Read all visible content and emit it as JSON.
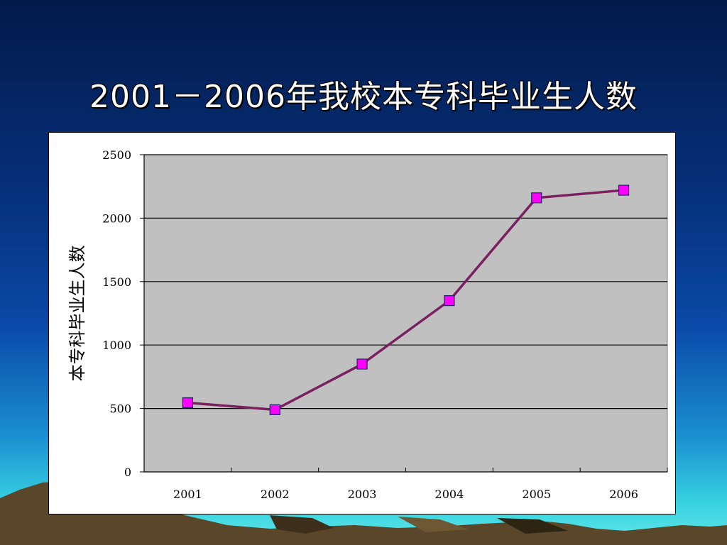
{
  "slide": {
    "title": "2001－2006年我校本专科毕业生人数"
  },
  "colors": {
    "line": "#7a2060",
    "marker_fill": "#ff00ff",
    "marker_stroke": "#202060",
    "plot_bg": "#c0c0c0"
  },
  "chart_data": {
    "type": "line",
    "title": "",
    "xlabel": "",
    "ylabel": "本专科毕业生人数",
    "categories": [
      "2001",
      "2002",
      "2003",
      "2004",
      "2005",
      "2006"
    ],
    "series": [
      {
        "values": [
          545,
          490,
          850,
          1350,
          2160,
          2220
        ]
      }
    ],
    "ylim": [
      0,
      2500
    ],
    "yticks": [
      0,
      500,
      1000,
      1500,
      2000,
      2500
    ],
    "grid": true,
    "legend": "none",
    "marker": "square"
  }
}
